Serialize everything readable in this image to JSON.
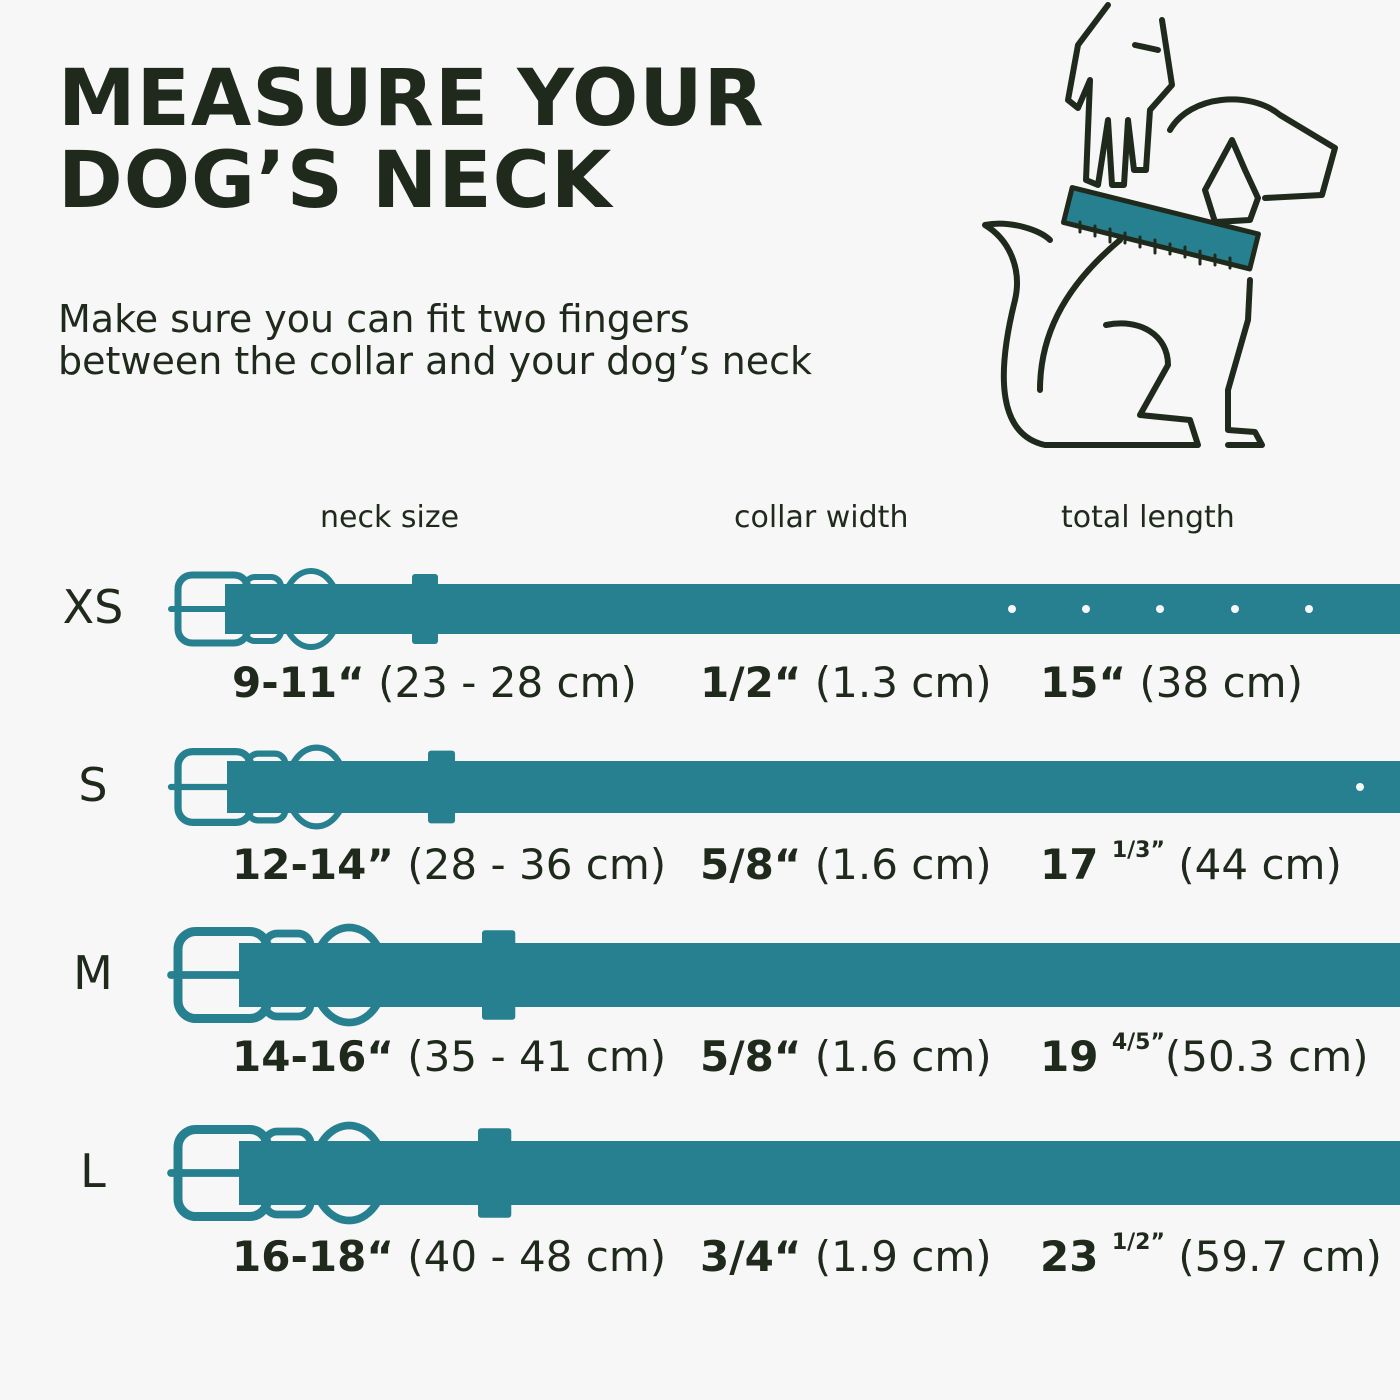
{
  "title_lines": [
    "MEASURE YOUR",
    "DOG’S  NECK"
  ],
  "subtitle_lines": [
    "Make sure you can fit two fingers",
    "between the collar and your dog’s neck"
  ],
  "illustration": "hand-measuring-dog-neck-icon",
  "columns": {
    "neck_size": "neck size",
    "collar_width": "collar width",
    "total_length": "total length"
  },
  "colors": {
    "collar": "#26808f",
    "text": "#1f2a1c",
    "background": "#f7f7f7"
  },
  "sizes": [
    {
      "label": "XS",
      "neck_bold": "9-11“",
      "neck_rest": " (23 - 28 cm)",
      "width_bold": "1/2“",
      "width_rest": " (1.3 cm)",
      "length_bold": "15“",
      "length_frac": "",
      "length_rest": " (38 cm)"
    },
    {
      "label": "S",
      "neck_bold": "12-14”",
      "neck_rest": " (28 - 36 cm)",
      "width_bold": "5/8“",
      "width_rest": " (1.6 cm)",
      "length_bold": "17",
      "length_frac": "1/3”",
      "length_rest": " (44 cm)"
    },
    {
      "label": "M",
      "neck_bold": "14-16“",
      "neck_rest": " (35 - 41 cm)",
      "width_bold": "5/8“",
      "width_rest": " (1.6 cm)",
      "length_bold": "19",
      "length_frac": "4/5”",
      "length_rest": "(50.3 cm)"
    },
    {
      "label": "L",
      "neck_bold": "16-18“",
      "neck_rest": " (40 - 48 cm)",
      "width_bold": "3/4“",
      "width_rest": " (1.9 cm)",
      "length_bold": "23",
      "length_frac": "1/2”",
      "length_rest": " (59.7 cm)"
    }
  ]
}
